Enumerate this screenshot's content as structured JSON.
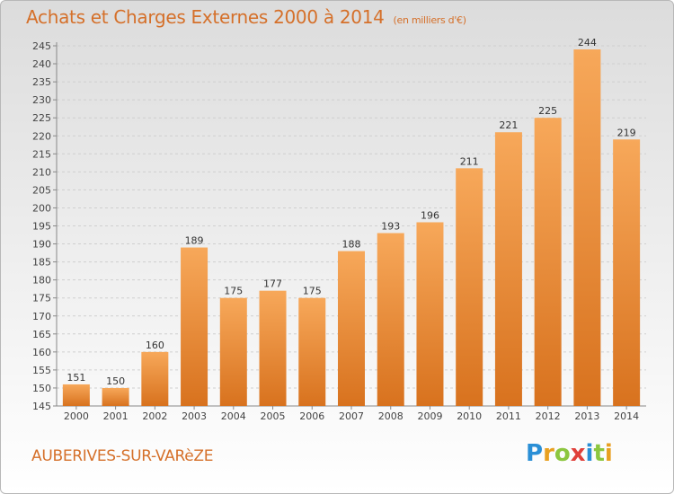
{
  "header": {
    "title": "Achats et Charges Externes 2000 à 2014",
    "subtitle": "(en milliers d'€)"
  },
  "footer": {
    "town": "AUBERIVES-SUR-VARèZE",
    "logo_letters": [
      {
        "ch": "P",
        "color": "#2a8fd6"
      },
      {
        "ch": "r",
        "color": "#e8a020"
      },
      {
        "ch": "o",
        "color": "#8cc63f"
      },
      {
        "ch": "x",
        "color": "#e0403a"
      },
      {
        "ch": "i",
        "color": "#2a8fd6"
      },
      {
        "ch": "t",
        "color": "#8cc63f"
      },
      {
        "ch": "i",
        "color": "#e8a020"
      }
    ]
  },
  "colors": {
    "bar_light": "#f7a85a",
    "bar_dark": "#d8721e",
    "text_orange": "#d5702a"
  },
  "chart_data": {
    "type": "bar",
    "categories": [
      "2000",
      "2001",
      "2002",
      "2003",
      "2004",
      "2005",
      "2006",
      "2007",
      "2008",
      "2009",
      "2010",
      "2011",
      "2012",
      "2013",
      "2014"
    ],
    "values": [
      151,
      150,
      160,
      189,
      175,
      177,
      175,
      188,
      193,
      196,
      211,
      221,
      225,
      244,
      219
    ],
    "title": "Achats et Charges Externes 2000 à 2014",
    "ylim": [
      145,
      245
    ],
    "ytick_step": 5,
    "grid": true,
    "data_labels": true
  }
}
